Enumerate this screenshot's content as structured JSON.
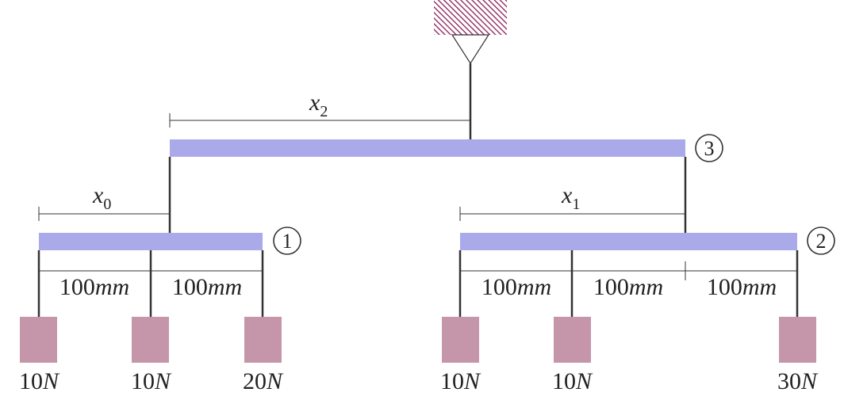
{
  "colors": {
    "beam": "#aaaaeb",
    "weight": "#c596aa",
    "ceiling_hatch": "#8a1d5a",
    "line": "#333333",
    "text": "#222222"
  },
  "beams": [
    {
      "id": "1",
      "label": "1"
    },
    {
      "id": "2",
      "label": "2"
    },
    {
      "id": "3",
      "label": "3"
    }
  ],
  "distances": {
    "x0": {
      "base": "x",
      "sub": "0"
    },
    "x1": {
      "base": "x",
      "sub": "1"
    },
    "x2": {
      "base": "x",
      "sub": "2"
    }
  },
  "spacing_label": {
    "number": "100",
    "unit": "mm"
  },
  "weights": {
    "beam1": [
      {
        "value": "10",
        "unit": "N"
      },
      {
        "value": "10",
        "unit": "N"
      },
      {
        "value": "20",
        "unit": "N"
      }
    ],
    "beam2": [
      {
        "value": "10",
        "unit": "N"
      },
      {
        "value": "10",
        "unit": "N"
      },
      {
        "value": "30",
        "unit": "N"
      }
    ]
  }
}
